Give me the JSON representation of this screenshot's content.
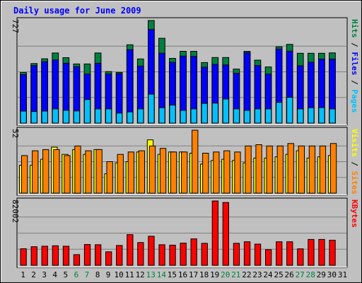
{
  "chart_data": {
    "type": "bar",
    "title": "Daily usage for June 2009",
    "categories": [
      "1",
      "2",
      "3",
      "4",
      "5",
      "6",
      "7",
      "8",
      "9",
      "10",
      "11",
      "12",
      "13",
      "14",
      "15",
      "16",
      "17",
      "18",
      "19",
      "20",
      "21",
      "22",
      "23",
      "24",
      "25",
      "26",
      "27",
      "28",
      "29",
      "30",
      "31"
    ],
    "weekend_days": [
      "6",
      "7",
      "13",
      "14",
      "20",
      "21",
      "27",
      "28"
    ],
    "panels": [
      {
        "axis_max_label": "727",
        "axis_max": 727,
        "legend": [
          {
            "text": "Pages",
            "color": "#00c0ff"
          },
          {
            "text": "Files",
            "color": "#0000ff"
          },
          {
            "text": "Hits",
            "color": "#008040"
          }
        ],
        "series": [
          {
            "name": "Hits",
            "color": "#008040",
            "values": [
              358,
              422,
              456,
              497,
              464,
              419,
              419,
              497,
              365,
              359,
              555,
              455,
              727,
              601,
              459,
              509,
              509,
              429,
              465,
              465,
              383,
              509,
              446,
              398,
              541,
              558,
              495,
              495,
              495,
              498,
              0
            ]
          },
          {
            "name": "Files",
            "color": "#0000ff",
            "values": [
              343,
              407,
              435,
              447,
              424,
              399,
              347,
              423,
              348,
              350,
              520,
              404,
              664,
              495,
              430,
              475,
              473,
              396,
              416,
              412,
              353,
              499,
              408,
              347,
              525,
              510,
              406,
              431,
              453,
              453,
              0
            ]
          },
          {
            "name": "Pages",
            "color": "#00c0ff",
            "values": [
              85,
              82,
              85,
              101,
              91,
              86,
              167,
              101,
              101,
              71,
              79,
              101,
              205,
              109,
              128,
              90,
              101,
              140,
              142,
              171,
              101,
              90,
              101,
              101,
              147,
              183,
              101,
              109,
              110,
              101,
              0
            ]
          }
        ]
      },
      {
        "axis_max_label": "52",
        "axis_max": 52,
        "legend": [
          {
            "text": "Sites",
            "color": "#ff8000"
          },
          {
            "text": "Visits",
            "color": "#ffff00"
          }
        ],
        "series": [
          {
            "name": "Visits",
            "color": "#ffff00",
            "values": [
              23,
              23,
              28,
              38,
              32,
              36,
              32,
              36,
              16,
              25,
              26,
              34,
              44,
              32,
              34,
              34,
              33,
              24,
              27,
              28,
              27,
              25,
              29,
              29,
              30,
              32,
              35,
              29,
              30,
              31,
              0
            ]
          },
          {
            "name": "Sites",
            "color": "#ff8000",
            "values": [
              31,
              35,
              36,
              36,
              31,
              39,
              35,
              36,
              26,
              32,
              34,
              35,
              39,
              37,
              34,
              34,
              52,
              33,
              34,
              35,
              34,
              39,
              40,
              39,
              39,
              41,
              39,
              39,
              39,
              41,
              0
            ]
          }
        ]
      },
      {
        "axis_max_label": "82002",
        "axis_max": 82002,
        "legend": [
          {
            "text": "KBytes",
            "color": "#ff0000"
          }
        ],
        "series": [
          {
            "name": "KBytes",
            "color": "#ff0000",
            "values": [
              21100,
              23700,
              24300,
              24900,
              24300,
              13600,
              26500,
              26200,
              17200,
              25300,
              39100,
              29000,
              37000,
              26200,
              25700,
              28300,
              33700,
              28000,
              82000,
              80000,
              28000,
              30000,
              27000,
              20000,
              30000,
              30000,
              21000,
              33000,
              33000,
              32000,
              0
            ]
          }
        ]
      }
    ]
  }
}
